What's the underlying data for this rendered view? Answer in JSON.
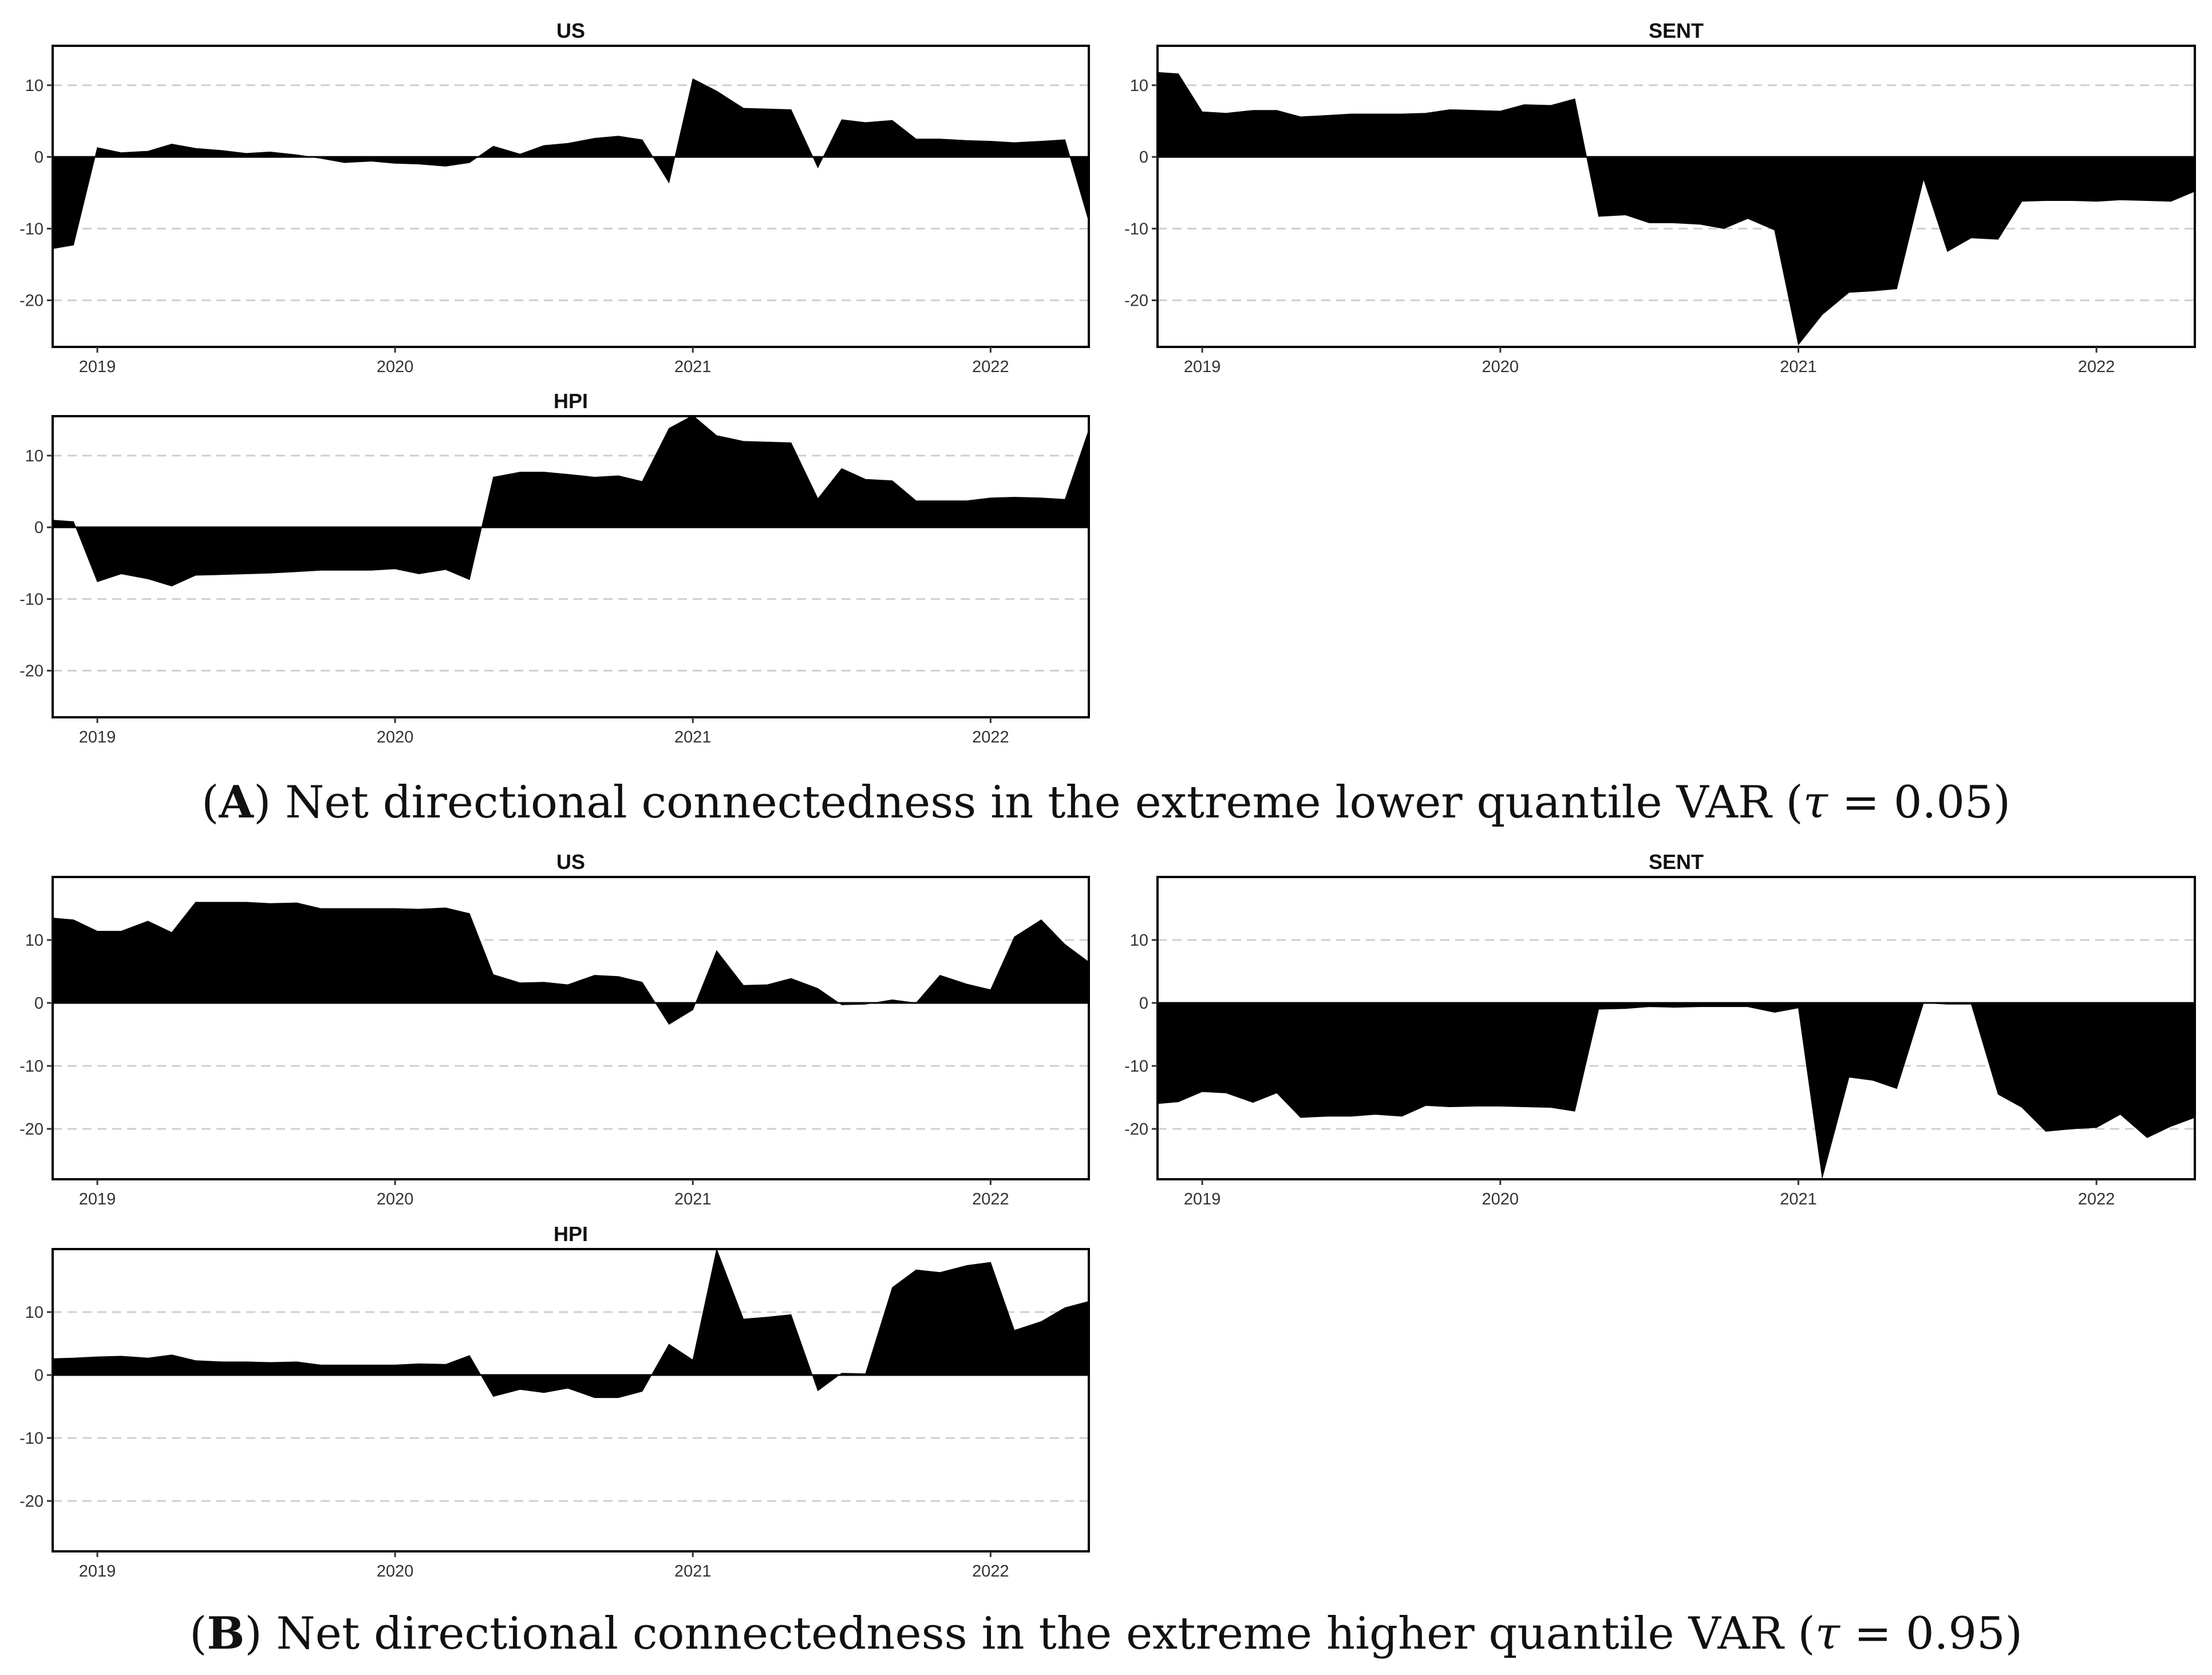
{
  "figure": {
    "caption_a": {
      "open": "(",
      "letter": "A",
      "text": ") Net directional connectedness in the extreme lower quantile VAR (",
      "tau": "τ",
      "value": " = 0.05)"
    },
    "caption_b": {
      "open": "(",
      "letter": "B",
      "text": ") Net directional connectedness in the extreme higher quantile VAR (",
      "tau": "τ",
      "value": " = 0.95)"
    }
  },
  "chart_data": [
    {
      "group": "A",
      "type": "area",
      "title": "US",
      "xlim": [
        2018.85,
        2022.33
      ],
      "ylim": [
        -26.5,
        15.5
      ],
      "yticks": [
        10,
        0,
        -10,
        -20
      ],
      "xticks": [
        2019,
        2020,
        2021,
        2022
      ],
      "grid": "horizontal dashed",
      "x": [
        2018.85,
        2018.92,
        2019.0,
        2019.08,
        2019.17,
        2019.25,
        2019.33,
        2019.42,
        2019.5,
        2019.58,
        2019.67,
        2019.75,
        2019.83,
        2019.92,
        2020.0,
        2020.08,
        2020.17,
        2020.25,
        2020.33,
        2020.42,
        2020.5,
        2020.58,
        2020.67,
        2020.75,
        2020.83,
        2020.92,
        2021.0,
        2021.08,
        2021.17,
        2021.25,
        2021.33,
        2021.42,
        2021.5,
        2021.58,
        2021.67,
        2021.75,
        2021.83,
        2021.92,
        2022.0,
        2022.08,
        2022.17,
        2022.25,
        2022.33
      ],
      "values": [
        -12.8,
        -12.3,
        1.3,
        0.6,
        0.8,
        1.8,
        1.2,
        0.9,
        0.5,
        0.7,
        0.3,
        -0.2,
        -0.8,
        -0.6,
        -0.9,
        -1.0,
        -1.3,
        -0.8,
        1.5,
        0.4,
        1.6,
        1.9,
        2.6,
        2.9,
        2.4,
        -3.6,
        10.9,
        9.2,
        6.8,
        6.7,
        6.6,
        -1.5,
        5.2,
        4.8,
        5.1,
        2.5,
        2.5,
        2.3,
        2.2,
        2.0,
        2.2,
        2.4,
        -9.0
      ]
    },
    {
      "group": "A",
      "type": "area",
      "title": "SENT",
      "xlim": [
        2018.85,
        2022.33
      ],
      "ylim": [
        -26.5,
        15.5
      ],
      "yticks": [
        10,
        0,
        -10,
        -20
      ],
      "xticks": [
        2019,
        2020,
        2021,
        2022
      ],
      "grid": "horizontal dashed",
      "x": [
        2018.85,
        2018.92,
        2019.0,
        2019.08,
        2019.17,
        2019.25,
        2019.33,
        2019.42,
        2019.5,
        2019.58,
        2019.67,
        2019.75,
        2019.83,
        2019.92,
        2020.0,
        2020.08,
        2020.17,
        2020.25,
        2020.33,
        2020.42,
        2020.5,
        2020.58,
        2020.67,
        2020.75,
        2020.83,
        2020.92,
        2021.0,
        2021.08,
        2021.17,
        2021.25,
        2021.33,
        2021.42,
        2021.5,
        2021.58,
        2021.67,
        2021.75,
        2021.83,
        2021.92,
        2022.0,
        2022.08,
        2022.17,
        2022.25,
        2022.33
      ],
      "values": [
        11.8,
        11.6,
        6.3,
        6.1,
        6.5,
        6.5,
        5.6,
        5.8,
        6.0,
        6.0,
        6.0,
        6.1,
        6.6,
        6.5,
        6.4,
        7.3,
        7.2,
        8.1,
        -8.3,
        -8.1,
        -9.2,
        -9.2,
        -9.4,
        -10.0,
        -8.6,
        -10.2,
        -26.2,
        -22.0,
        -18.9,
        -18.7,
        -18.4,
        -3.1,
        -13.2,
        -11.3,
        -11.5,
        -6.2,
        -6.1,
        -6.1,
        -6.2,
        -6.0,
        -6.1,
        -6.2,
        -4.8
      ]
    },
    {
      "group": "A",
      "type": "area",
      "title": "HPI",
      "xlim": [
        2018.85,
        2022.33
      ],
      "ylim": [
        -26.5,
        15.5
      ],
      "yticks": [
        10,
        0,
        -10,
        -20
      ],
      "xticks": [
        2019,
        2020,
        2021,
        2022
      ],
      "grid": "horizontal dashed",
      "x": [
        2018.85,
        2018.92,
        2019.0,
        2019.08,
        2019.17,
        2019.25,
        2019.33,
        2019.42,
        2019.5,
        2019.58,
        2019.67,
        2019.75,
        2019.83,
        2019.92,
        2020.0,
        2020.08,
        2020.17,
        2020.25,
        2020.33,
        2020.42,
        2020.5,
        2020.58,
        2020.67,
        2020.75,
        2020.83,
        2020.92,
        2021.0,
        2021.08,
        2021.17,
        2021.25,
        2021.33,
        2021.42,
        2021.5,
        2021.58,
        2021.67,
        2021.75,
        2021.83,
        2021.92,
        2022.0,
        2022.08,
        2022.17,
        2022.25,
        2022.33
      ],
      "values": [
        1.0,
        0.8,
        -7.6,
        -6.5,
        -7.2,
        -8.2,
        -6.7,
        -6.6,
        -6.5,
        -6.4,
        -6.2,
        -6.0,
        -6.0,
        -6.0,
        -5.8,
        -6.5,
        -5.9,
        -7.3,
        7.0,
        7.7,
        7.7,
        7.4,
        7.0,
        7.2,
        6.4,
        13.8,
        15.6,
        12.8,
        12.0,
        11.9,
        11.8,
        4.0,
        8.2,
        6.7,
        6.5,
        3.7,
        3.7,
        3.7,
        4.1,
        4.2,
        4.1,
        3.9,
        13.6
      ]
    },
    {
      "group": "B",
      "type": "area",
      "title": "US",
      "xlim": [
        2018.85,
        2022.33
      ],
      "ylim": [
        -28.0,
        20.0
      ],
      "yticks": [
        10,
        0,
        -10,
        -20
      ],
      "xticks": [
        2019,
        2020,
        2021,
        2022
      ],
      "grid": "horizontal dashed",
      "x": [
        2018.85,
        2018.92,
        2019.0,
        2019.08,
        2019.17,
        2019.25,
        2019.33,
        2019.42,
        2019.5,
        2019.58,
        2019.67,
        2019.75,
        2019.83,
        2019.92,
        2020.0,
        2020.08,
        2020.17,
        2020.25,
        2020.33,
        2020.42,
        2020.5,
        2020.58,
        2020.67,
        2020.75,
        2020.83,
        2020.92,
        2021.0,
        2021.08,
        2021.17,
        2021.25,
        2021.33,
        2021.42,
        2021.5,
        2021.58,
        2021.67,
        2021.75,
        2021.83,
        2021.92,
        2022.0,
        2022.08,
        2022.17,
        2022.25,
        2022.33
      ],
      "values": [
        13.5,
        13.2,
        11.4,
        11.4,
        13.0,
        11.2,
        16.0,
        16.0,
        16.0,
        15.8,
        15.9,
        15.0,
        15.0,
        15.0,
        15.0,
        14.9,
        15.1,
        14.2,
        4.5,
        3.2,
        3.3,
        2.9,
        4.4,
        4.2,
        3.3,
        -3.4,
        -1.1,
        8.3,
        2.8,
        2.9,
        3.9,
        2.3,
        -0.3,
        -0.2,
        0.5,
        0.0,
        4.4,
        3.0,
        2.1,
        10.5,
        13.2,
        9.3,
        6.5
      ]
    },
    {
      "group": "B",
      "type": "area",
      "title": "SENT",
      "xlim": [
        2018.85,
        2022.33
      ],
      "ylim": [
        -28.0,
        20.0
      ],
      "yticks": [
        10,
        0,
        -10,
        -20
      ],
      "xticks": [
        2019,
        2020,
        2021,
        2022
      ],
      "grid": "horizontal dashed",
      "x": [
        2018.85,
        2018.92,
        2019.0,
        2019.08,
        2019.17,
        2019.25,
        2019.33,
        2019.42,
        2019.5,
        2019.58,
        2019.67,
        2019.75,
        2019.83,
        2019.92,
        2020.0,
        2020.08,
        2020.17,
        2020.25,
        2020.33,
        2020.42,
        2020.5,
        2020.58,
        2020.67,
        2020.75,
        2020.83,
        2020.92,
        2021.0,
        2021.08,
        2021.17,
        2021.25,
        2021.33,
        2021.42,
        2021.5,
        2021.58,
        2021.67,
        2021.75,
        2021.83,
        2021.92,
        2022.0,
        2022.08,
        2022.17,
        2022.25,
        2022.33
      ],
      "values": [
        -16.0,
        -15.7,
        -14.1,
        -14.3,
        -15.8,
        -14.3,
        -18.2,
        -18.0,
        -18.0,
        -17.7,
        -18.0,
        -16.3,
        -16.5,
        -16.4,
        -16.4,
        -16.5,
        -16.6,
        -17.2,
        -1.0,
        -0.9,
        -0.6,
        -0.7,
        -0.6,
        -0.6,
        -0.6,
        -1.5,
        -0.8,
        -27.8,
        -11.8,
        -12.3,
        -13.6,
        0.0,
        -0.2,
        -0.2,
        -14.5,
        -16.6,
        -20.4,
        -20.0,
        -19.8,
        -17.7,
        -21.4,
        -19.6,
        -18.2
      ]
    },
    {
      "group": "B",
      "type": "area",
      "title": "HPI",
      "xlim": [
        2018.85,
        2022.33
      ],
      "ylim": [
        -28.0,
        20.0
      ],
      "yticks": [
        10,
        0,
        -10,
        -20
      ],
      "xticks": [
        2019,
        2020,
        2021,
        2022
      ],
      "grid": "horizontal dashed",
      "x": [
        2018.85,
        2018.92,
        2019.0,
        2019.08,
        2019.17,
        2019.25,
        2019.33,
        2019.42,
        2019.5,
        2019.58,
        2019.67,
        2019.75,
        2019.83,
        2019.92,
        2020.0,
        2020.08,
        2020.17,
        2020.25,
        2020.33,
        2020.42,
        2020.5,
        2020.58,
        2020.67,
        2020.75,
        2020.83,
        2020.92,
        2021.0,
        2021.08,
        2021.17,
        2021.25,
        2021.33,
        2021.42,
        2021.5,
        2021.58,
        2021.67,
        2021.75,
        2021.83,
        2021.92,
        2022.0,
        2022.08,
        2022.17,
        2022.25,
        2022.33
      ],
      "values": [
        2.6,
        2.7,
        2.9,
        3.0,
        2.7,
        3.2,
        2.3,
        2.1,
        2.1,
        2.0,
        2.1,
        1.6,
        1.6,
        1.6,
        1.6,
        1.8,
        1.7,
        3.1,
        -3.4,
        -2.3,
        -2.8,
        -2.1,
        -3.6,
        -3.6,
        -2.6,
        4.9,
        2.4,
        20.0,
        8.9,
        9.2,
        9.6,
        -2.5,
        0.3,
        0.2,
        13.9,
        16.7,
        16.3,
        17.4,
        17.9,
        7.1,
        8.5,
        10.7,
        11.7
      ]
    }
  ]
}
